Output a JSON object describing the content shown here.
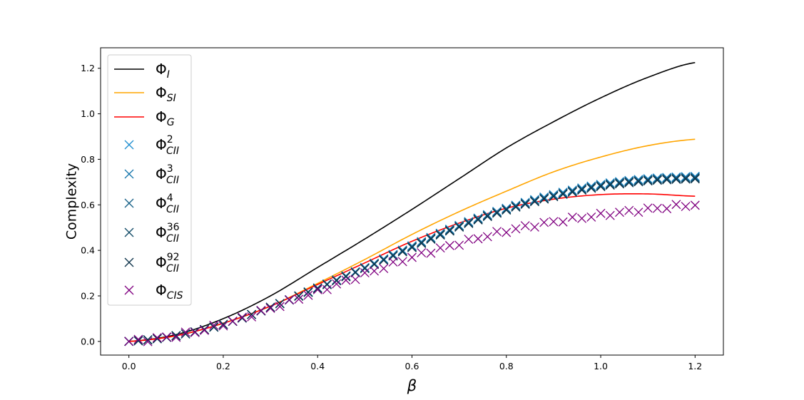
{
  "chart_data": {
    "type": "line",
    "xlabel": "β",
    "ylabel": "Complexity",
    "xlim": [
      -0.06,
      1.26
    ],
    "ylim": [
      -0.06,
      1.29
    ],
    "xticks": [
      "0.0",
      "0.2",
      "0.4",
      "0.6",
      "0.8",
      "1.0",
      "1.2"
    ],
    "yticks": [
      "0.0",
      "0.2",
      "0.4",
      "0.6",
      "0.8",
      "1.0",
      "1.2"
    ],
    "legend_position": "top-left",
    "grid": false,
    "line_series": [
      {
        "name": "Φ_I",
        "legend": {
          "base": "Φ",
          "sub": "I",
          "sup": ""
        },
        "color": "#000000",
        "x": [
          0.0,
          0.1,
          0.2,
          0.3,
          0.4,
          0.5,
          0.6,
          0.7,
          0.8,
          0.9,
          1.0,
          1.1,
          1.2
        ],
        "y": [
          0.0,
          0.03,
          0.1,
          0.2,
          0.325,
          0.45,
          0.58,
          0.715,
          0.85,
          0.965,
          1.07,
          1.16,
          1.225
        ]
      },
      {
        "name": "Φ_SI",
        "legend": {
          "base": "Φ",
          "sub": "SI",
          "sup": ""
        },
        "color": "#ffa500",
        "x": [
          0.0,
          0.1,
          0.2,
          0.3,
          0.4,
          0.5,
          0.6,
          0.7,
          0.8,
          0.9,
          1.0,
          1.1,
          1.2
        ],
        "y": [
          0.0,
          0.025,
          0.08,
          0.155,
          0.255,
          0.36,
          0.47,
          0.57,
          0.66,
          0.745,
          0.81,
          0.86,
          0.888
        ]
      },
      {
        "name": "Φ_G",
        "legend": {
          "base": "Φ",
          "sub": "G",
          "sup": ""
        },
        "color": "#ff0000",
        "x": [
          0.0,
          0.1,
          0.2,
          0.3,
          0.4,
          0.5,
          0.6,
          0.7,
          0.8,
          0.9,
          1.0,
          1.1,
          1.2
        ],
        "y": [
          0.0,
          0.025,
          0.08,
          0.155,
          0.25,
          0.345,
          0.44,
          0.52,
          0.585,
          0.625,
          0.645,
          0.648,
          0.638
        ]
      }
    ],
    "marker_series": [
      {
        "name": "Φ_CII^2",
        "legend": {
          "base": "Φ",
          "sub": "CII",
          "sup": "2"
        },
        "color": "#1f8ed0",
        "x_range": [
          0.0,
          1.2
        ],
        "step": 0.02,
        "curve_x": [
          0.0,
          0.1,
          0.2,
          0.3,
          0.4,
          0.5,
          0.6,
          0.7,
          0.8,
          0.9,
          1.0,
          1.1,
          1.2
        ],
        "curve_y": [
          0.0,
          0.025,
          0.075,
          0.15,
          0.235,
          0.325,
          0.42,
          0.51,
          0.585,
          0.645,
          0.69,
          0.715,
          0.725
        ]
      },
      {
        "name": "Φ_CII^3",
        "legend": {
          "base": "Φ",
          "sub": "CII",
          "sup": "3"
        },
        "color": "#1776ac",
        "x_range": [
          0.0,
          1.2
        ],
        "step": 0.02,
        "curve_x": [
          0.0,
          0.1,
          0.2,
          0.3,
          0.4,
          0.5,
          0.6,
          0.7,
          0.8,
          0.9,
          1.0,
          1.1,
          1.2
        ],
        "curve_y": [
          0.0,
          0.025,
          0.075,
          0.15,
          0.235,
          0.323,
          0.418,
          0.508,
          0.583,
          0.642,
          0.687,
          0.712,
          0.722
        ]
      },
      {
        "name": "Φ_CII^4",
        "legend": {
          "base": "Φ",
          "sub": "CII",
          "sup": "4"
        },
        "color": "#155f86",
        "x_range": [
          0.0,
          1.2
        ],
        "step": 0.02,
        "curve_x": [
          0.0,
          0.1,
          0.2,
          0.3,
          0.4,
          0.5,
          0.6,
          0.7,
          0.8,
          0.9,
          1.0,
          1.1,
          1.2
        ],
        "curve_y": [
          0.0,
          0.025,
          0.075,
          0.15,
          0.234,
          0.322,
          0.416,
          0.506,
          0.581,
          0.64,
          0.685,
          0.71,
          0.72
        ]
      },
      {
        "name": "Φ_CII^36",
        "legend": {
          "base": "Φ",
          "sub": "CII",
          "sup": "36"
        },
        "color": "#114a66",
        "x_range": [
          0.0,
          1.2
        ],
        "step": 0.02,
        "curve_x": [
          0.0,
          0.1,
          0.2,
          0.3,
          0.4,
          0.5,
          0.6,
          0.7,
          0.8,
          0.9,
          1.0,
          1.1,
          1.2
        ],
        "curve_y": [
          0.0,
          0.025,
          0.075,
          0.15,
          0.233,
          0.321,
          0.414,
          0.504,
          0.579,
          0.638,
          0.683,
          0.708,
          0.717
        ]
      },
      {
        "name": "Φ_CII^92",
        "legend": {
          "base": "Φ",
          "sub": "CII",
          "sup": "92"
        },
        "color": "#0d3349",
        "x_range": [
          0.0,
          1.2
        ],
        "step": 0.02,
        "curve_x": [
          0.0,
          0.1,
          0.2,
          0.3,
          0.4,
          0.5,
          0.6,
          0.7,
          0.8,
          0.9,
          1.0,
          1.1,
          1.2
        ],
        "curve_y": [
          0.0,
          0.025,
          0.075,
          0.15,
          0.232,
          0.32,
          0.412,
          0.502,
          0.577,
          0.636,
          0.68,
          0.705,
          0.714
        ]
      },
      {
        "name": "Φ_CIS",
        "legend": {
          "base": "Φ",
          "sub": "CIS",
          "sup": ""
        },
        "color": "#800080",
        "x_range": [
          0.0,
          1.2
        ],
        "step": 0.02,
        "jitter": true,
        "curve_x": [
          0.0,
          0.1,
          0.2,
          0.3,
          0.4,
          0.5,
          0.6,
          0.7,
          0.8,
          0.9,
          1.0,
          1.1,
          1.2
        ],
        "curve_y": [
          0.0,
          0.025,
          0.075,
          0.145,
          0.22,
          0.295,
          0.37,
          0.43,
          0.485,
          0.525,
          0.555,
          0.58,
          0.6
        ]
      }
    ]
  }
}
